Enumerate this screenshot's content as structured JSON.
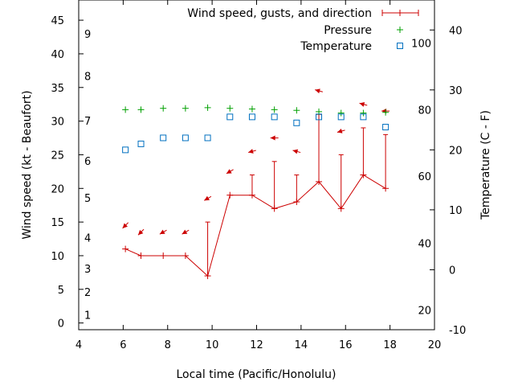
{
  "chart_data": {
    "type": "line",
    "xlabel": "Local time (Pacific/Honolulu)",
    "ylabel": "Wind speed (kt - Beaufort)",
    "y2label": "Temperature (C - F)",
    "xlim": [
      4,
      20
    ],
    "ylim": [
      -1,
      48
    ],
    "y2lim": [
      -10,
      45
    ],
    "grid": false,
    "legend_position": "top-right",
    "x_ticks": [
      "4",
      "6",
      "8",
      "10",
      "12",
      "14",
      "16",
      "18",
      "20"
    ],
    "y_ticks": [
      "0",
      "5",
      "10",
      "15",
      "20",
      "25",
      "30",
      "35",
      "40",
      "45"
    ],
    "y2_ticks": [
      "-10",
      "0",
      "10",
      "20",
      "30",
      "40"
    ],
    "beaufort_scale": [
      {
        "label": "1",
        "y": 1.2
      },
      {
        "label": "2",
        "y": 4.6
      },
      {
        "label": "3",
        "y": 8.1
      },
      {
        "label": "4",
        "y": 12.7
      },
      {
        "label": "5",
        "y": 18.6
      },
      {
        "label": "6",
        "y": 24.1
      },
      {
        "label": "7",
        "y": 30.1
      },
      {
        "label": "8",
        "y": 36.7
      },
      {
        "label": "9",
        "y": 43.0
      }
    ],
    "fahrenheit_scale": [
      {
        "label": "20",
        "y2": -6.7
      },
      {
        "label": "40",
        "y2": 4.4
      },
      {
        "label": "60",
        "y2": 15.6
      },
      {
        "label": "80",
        "y2": 26.7
      },
      {
        "label": "100",
        "y2": 37.8
      }
    ],
    "series": [
      {
        "name": "Wind speed, gusts, and direction",
        "type": "wind",
        "color": "#cc0000",
        "x": [
          6.1,
          6.8,
          7.8,
          8.8,
          9.8,
          10.8,
          11.8,
          12.8,
          13.8,
          14.8,
          15.8,
          16.8,
          17.8
        ],
        "speed": [
          11,
          10,
          10,
          10,
          7,
          19,
          19,
          17,
          18,
          21,
          17,
          22,
          20
        ],
        "gust": [
          11,
          10,
          10,
          10,
          15,
          19,
          22,
          24,
          22,
          31,
          25,
          29,
          28
        ],
        "direction_deg": [
          45,
          45,
          60,
          60,
          60,
          60,
          75,
          90,
          105,
          105,
          75,
          105,
          90
        ]
      },
      {
        "name": "Pressure",
        "type": "scatter",
        "marker": "plus",
        "color": "#00a000",
        "x": [
          6.1,
          6.8,
          7.8,
          8.8,
          9.8,
          10.8,
          11.8,
          12.8,
          13.8,
          14.8,
          15.8,
          16.8,
          17.8
        ],
        "values": [
          31.7,
          31.7,
          31.9,
          31.9,
          32.0,
          31.9,
          31.8,
          31.7,
          31.6,
          31.4,
          31.2,
          31.2,
          31.3
        ]
      },
      {
        "name": "Temperature",
        "type": "scatter",
        "marker": "square",
        "axis": "y2",
        "color": "#0070c0",
        "x": [
          6.1,
          6.8,
          7.8,
          8.8,
          9.8,
          10.8,
          11.8,
          12.8,
          13.8,
          14.8,
          15.8,
          16.8,
          17.8
        ],
        "values": [
          20,
          21,
          22,
          22,
          22,
          25.5,
          25.5,
          25.5,
          24.5,
          25.5,
          25.5,
          25.5,
          23.8
        ]
      }
    ]
  }
}
